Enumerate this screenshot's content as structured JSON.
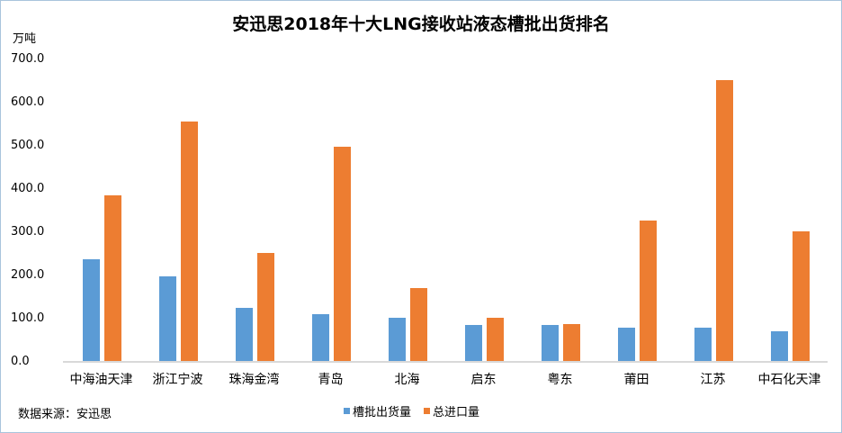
{
  "chart_data": {
    "type": "bar",
    "title": "安迅思2018年十大LNG接收站液态槽批出货排名",
    "ylabel": "万吨",
    "xlabel": "",
    "ylim": [
      0,
      700
    ],
    "yticks": [
      "0.0",
      "100.0",
      "200.0",
      "300.0",
      "400.0",
      "500.0",
      "600.0",
      "700.0"
    ],
    "categories": [
      "中海油天津",
      "浙江宁波",
      "珠海金湾",
      "青岛",
      "北海",
      "启东",
      "粤东",
      "莆田",
      "江苏",
      "中石化天津"
    ],
    "series": [
      {
        "name": "槽批出货量",
        "color": "#5b9bd5",
        "values": [
          237,
          198,
          125,
          110,
          102,
          85,
          85,
          79,
          79,
          71
        ]
      },
      {
        "name": "总进口量",
        "color": "#ed7d31",
        "values": [
          385,
          556,
          252,
          498,
          171,
          102,
          87,
          327,
          652,
          302
        ]
      }
    ],
    "grid": false,
    "legend_position": "bottom"
  },
  "footer": {
    "source": "数据来源：安迅思"
  }
}
